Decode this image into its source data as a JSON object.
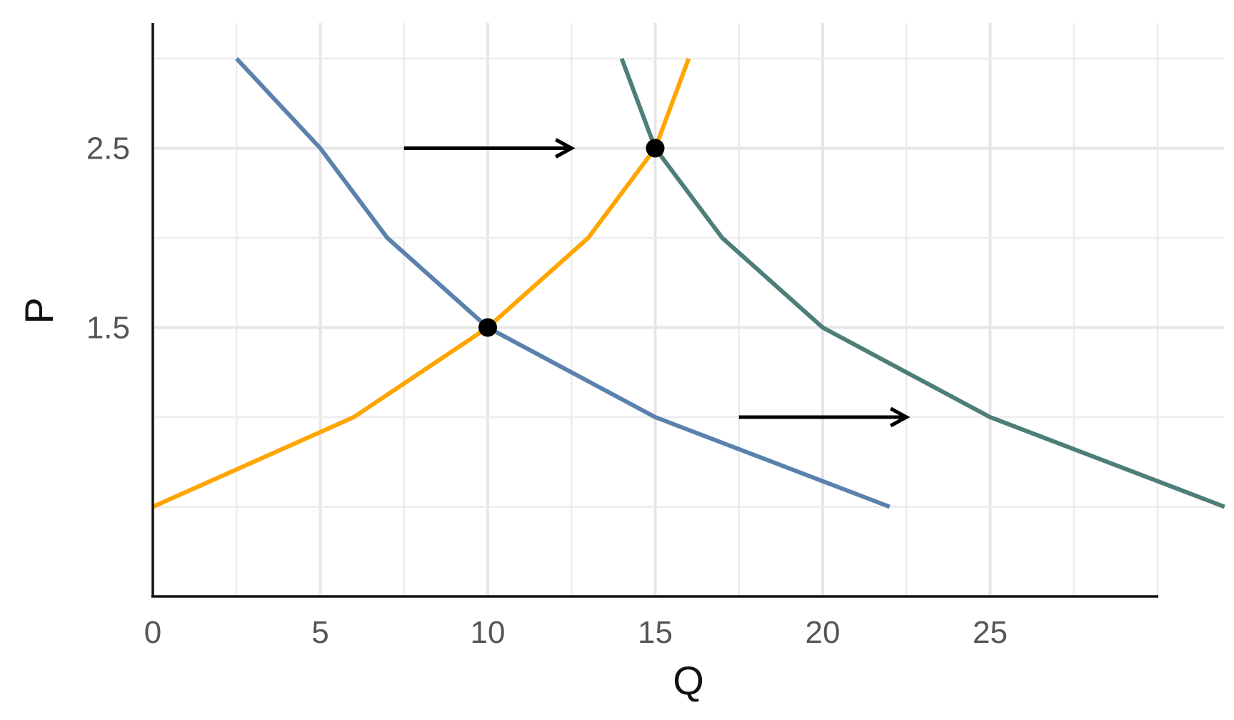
{
  "chart_data": {
    "type": "line",
    "title": "",
    "xlabel": "Q",
    "ylabel": "P",
    "xlim": [
      0,
      32
    ],
    "ylim": [
      0,
      3.2
    ],
    "x_ticks": [
      0,
      5,
      10,
      15,
      20,
      25
    ],
    "x_tick_labels": [
      "0",
      "5",
      "10",
      "15",
      "20",
      "25"
    ],
    "y_ticks": [
      1.5,
      2.5
    ],
    "y_tick_labels": [
      "1.5",
      "2.5"
    ],
    "x_minor_ticks": [
      2.5,
      7.5,
      12.5,
      17.5,
      22.5,
      27.5,
      30
    ],
    "y_minor_ticks": [
      0.5,
      1.0,
      2.0,
      3.0
    ],
    "grid": true,
    "series": [
      {
        "color": "#5b82ad",
        "points": [
          [
            2.5,
            3.0
          ],
          [
            5,
            2.5
          ],
          [
            7,
            2.0
          ],
          [
            10,
            1.5
          ],
          [
            15,
            1.0
          ],
          [
            22,
            0.5
          ]
        ]
      },
      {
        "color": "#4d7e78",
        "points": [
          [
            14,
            3.0
          ],
          [
            15,
            2.5
          ],
          [
            17,
            2.0
          ],
          [
            20,
            1.5
          ],
          [
            25,
            1.0
          ],
          [
            32,
            0.5
          ]
        ]
      },
      {
        "color": "#ffa500",
        "points": [
          [
            0,
            0.5
          ],
          [
            6,
            1.0
          ],
          [
            10,
            1.5
          ],
          [
            13,
            2.0
          ],
          [
            15,
            2.5
          ],
          [
            16,
            3.0
          ]
        ]
      }
    ],
    "equilibria": [
      [
        10,
        1.5
      ],
      [
        15,
        2.5
      ]
    ],
    "arrows": [
      {
        "from": [
          7.5,
          2.5
        ],
        "to": [
          12.5,
          2.5
        ]
      },
      {
        "from": [
          17.5,
          1.0
        ],
        "to": [
          22.5,
          1.0
        ]
      }
    ]
  }
}
